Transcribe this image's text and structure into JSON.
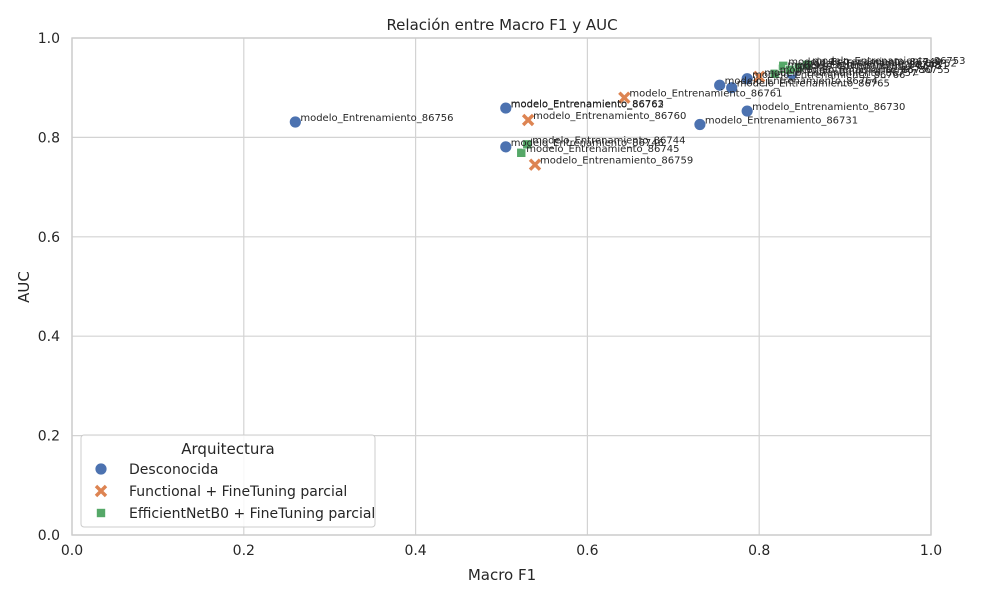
{
  "chart_data": {
    "type": "scatter",
    "title": "Relación entre Macro F1 y AUC",
    "xlabel": "Macro F1",
    "ylabel": "AUC",
    "xlim": [
      0.0,
      1.0
    ],
    "ylim": [
      0.0,
      1.0
    ],
    "xticks": [
      "0.0",
      "0.2",
      "0.4",
      "0.6",
      "0.8",
      "1.0"
    ],
    "yticks": [
      "0.0",
      "0.2",
      "0.4",
      "0.6",
      "0.8",
      "1.0"
    ],
    "grid": true,
    "legend": {
      "title": "Arquitectura",
      "position": "lower-left"
    },
    "series": [
      {
        "name": "Desconocida",
        "marker": "circle",
        "color": "#4c72b0",
        "points": [
          {
            "x": 0.26,
            "y": 0.831,
            "label": "modelo_Entrenamiento_86756"
          },
          {
            "x": 0.505,
            "y": 0.858,
            "label": "modelo_Entrenamiento_86762"
          },
          {
            "x": 0.505,
            "y": 0.859,
            "label": "modelo_Entrenamiento_86763"
          },
          {
            "x": 0.505,
            "y": 0.781,
            "label": "modelo_Entrenamiento_86746"
          },
          {
            "x": 0.731,
            "y": 0.826,
            "label": "modelo_Entrenamiento_86731"
          },
          {
            "x": 0.754,
            "y": 0.905,
            "label": "modelo_Entrenamiento_86764"
          },
          {
            "x": 0.768,
            "y": 0.9,
            "label": "modelo_Entrenamiento_86765"
          },
          {
            "x": 0.786,
            "y": 0.853,
            "label": "modelo_Entrenamiento_86730"
          },
          {
            "x": 0.786,
            "y": 0.918,
            "label": "modelo_Entrenamiento_86766"
          },
          {
            "x": 0.838,
            "y": 0.928,
            "label": "modelo_Entrenamiento_86755"
          }
        ]
      },
      {
        "name": "Functional + FineTuning parcial",
        "marker": "x",
        "color": "#dd8452",
        "points": [
          {
            "x": 0.531,
            "y": 0.835,
            "label": "modelo_Entrenamiento_86760"
          },
          {
            "x": 0.539,
            "y": 0.745,
            "label": "modelo_Entrenamiento_86759"
          },
          {
            "x": 0.643,
            "y": 0.88,
            "label": "modelo_Entrenamiento_86761"
          },
          {
            "x": 0.8,
            "y": 0.922,
            "label": "modelo_Entrenamiento_86757"
          }
        ]
      },
      {
        "name": "EfficientNetB0 + FineTuning parcial",
        "marker": "square",
        "color": "#55a868",
        "points": [
          {
            "x": 0.523,
            "y": 0.769,
            "label": "modelo_Entrenamiento_86745"
          },
          {
            "x": 0.53,
            "y": 0.786,
            "label": "modelo_Entrenamiento_86744"
          },
          {
            "x": 0.818,
            "y": 0.928,
            "label": "modelo_Entrenamiento_86750"
          },
          {
            "x": 0.827,
            "y": 0.938,
            "label": "modelo_Entrenamiento_86748"
          },
          {
            "x": 0.828,
            "y": 0.944,
            "label": "modelo_Entrenamiento_86749"
          },
          {
            "x": 0.836,
            "y": 0.936,
            "label": "modelo_Entrenamiento_86751"
          },
          {
            "x": 0.846,
            "y": 0.941,
            "label": "modelo_Entrenamiento_86752"
          },
          {
            "x": 0.856,
            "y": 0.946,
            "label": "modelo_Entrenamiento_86753"
          }
        ]
      }
    ]
  }
}
